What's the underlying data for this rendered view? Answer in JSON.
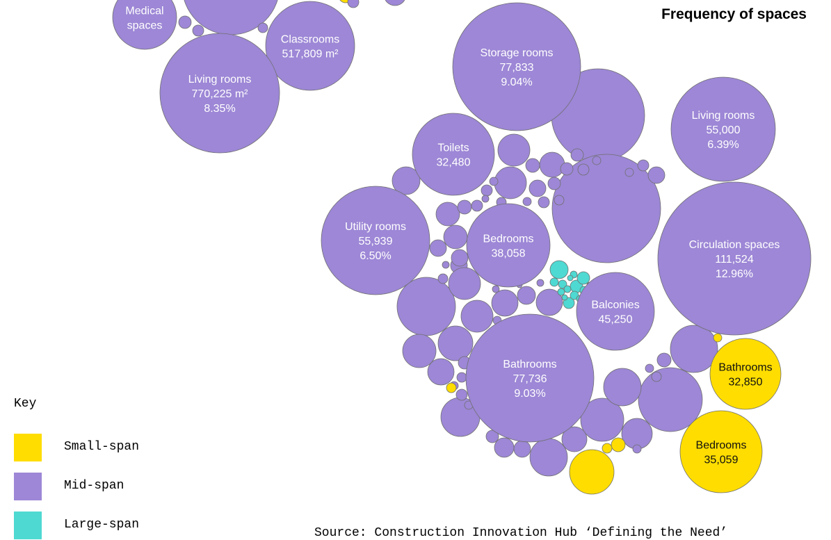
{
  "title": "Frequency of spaces",
  "key": {
    "title": "Key",
    "items": [
      {
        "label": "Small-span",
        "color": "#FFDD00"
      },
      {
        "label": "Mid-span",
        "color": "#9D87D6"
      },
      {
        "label": "Large-span",
        "color": "#4ED9D2"
      }
    ]
  },
  "source": "Source: Construction Innovation Hub ‘Defining the Need’",
  "chart_data": [
    {
      "type": "bubble",
      "bubbles": [
        {
          "category": "Medical spaces",
          "span": "Mid-span",
          "label_lines": [
            "Medical",
            "spaces"
          ]
        },
        {
          "category": "Classrooms",
          "span": "Mid-span",
          "value": 517809,
          "label_lines": [
            "Classrooms",
            "517,809 m²"
          ]
        },
        {
          "category": "Living rooms",
          "span": "Mid-span",
          "value": 770225,
          "share_pct": 8.35,
          "label_lines": [
            "Living rooms",
            "770,225 m²",
            "8.35%"
          ]
        }
      ]
    },
    {
      "type": "bubble",
      "title": "Frequency of spaces",
      "bubbles": [
        {
          "category": "Storage rooms",
          "span": "Mid-span",
          "value": 77833,
          "share_pct": 9.04,
          "label_lines": [
            "Storage rooms",
            "77,833",
            "9.04%"
          ]
        },
        {
          "category": "Living rooms",
          "span": "Mid-span",
          "value": 55000,
          "share_pct": 6.39,
          "label_lines": [
            "Living rooms",
            "55,000",
            "6.39%"
          ]
        },
        {
          "category": "Toilets",
          "span": "Mid-span",
          "value": 32480,
          "label_lines": [
            "Toilets",
            "32,480"
          ]
        },
        {
          "category": "Utility rooms",
          "span": "Mid-span",
          "value": 55939,
          "share_pct": 6.5,
          "label_lines": [
            "Utility rooms",
            "55,939",
            "6.50%"
          ]
        },
        {
          "category": "Bedrooms",
          "span": "Mid-span",
          "value": 38058,
          "label_lines": [
            "Bedrooms",
            "38,058"
          ]
        },
        {
          "category": "Circulation spaces",
          "span": "Mid-span",
          "value": 111524,
          "share_pct": 12.96,
          "label_lines": [
            "Circulation spaces",
            "111,524",
            "12.96%"
          ]
        },
        {
          "category": "Balconies",
          "span": "Mid-span",
          "value": 45250,
          "label_lines": [
            "Balconies",
            "45,250"
          ]
        },
        {
          "category": "Bathrooms",
          "span": "Mid-span",
          "value": 77736,
          "share_pct": 9.03,
          "label_lines": [
            "Bathrooms",
            "77,736",
            "9.03%"
          ]
        },
        {
          "category": "Bathrooms",
          "span": "Small-span",
          "value": 32850,
          "label_lines": [
            "Bathrooms",
            "32,850"
          ]
        },
        {
          "category": "Bedrooms",
          "span": "Small-span",
          "value": 35059,
          "label_lines": [
            "Bedrooms",
            "35,059"
          ]
        }
      ]
    }
  ]
}
